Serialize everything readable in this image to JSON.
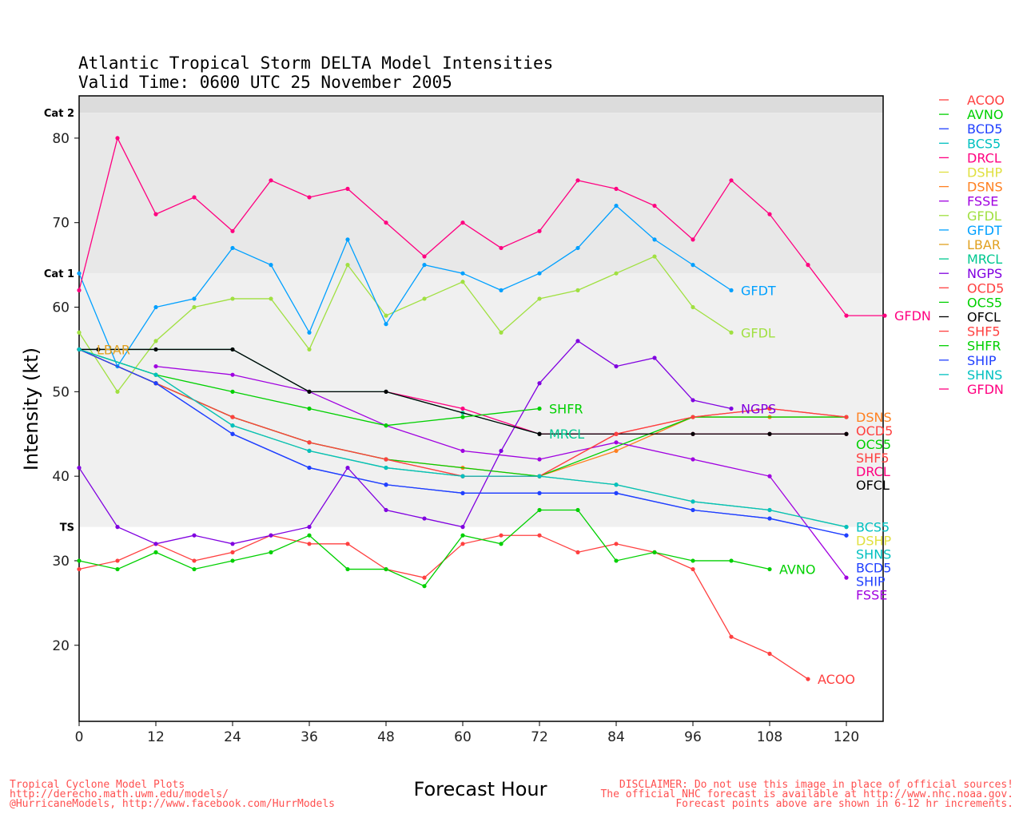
{
  "chart_data": {
    "type": "line",
    "title": "Atlantic Tropical Storm DELTA Model Intensities",
    "subtitle": "Valid Time: 0600 UTC 25 November 2005",
    "xlabel": "Forecast Hour",
    "ylabel": "Intensity (kt)",
    "xlim": [
      0,
      125.75
    ],
    "ylim": [
      11,
      85
    ],
    "xticks": [
      0,
      12,
      24,
      36,
      48,
      60,
      72,
      84,
      96,
      108,
      120
    ],
    "yticks": [
      20,
      30,
      40,
      50,
      60,
      70,
      80
    ],
    "bands": [
      {
        "label": "Cat 2",
        "from": 83,
        "to": 85,
        "color": "#dcdcdc"
      },
      {
        "label": "Cat 1",
        "from": 64,
        "to": 83,
        "color": "#e8e8e8"
      },
      {
        "label": "TS",
        "from": 34,
        "to": 64,
        "color": "#f0f0f0"
      }
    ],
    "legend_position": "right",
    "series": [
      {
        "name": "ACOO",
        "color": "#ff4040",
        "x": [
          0,
          6,
          12,
          18,
          24,
          30,
          36,
          42,
          48,
          54,
          60,
          66,
          72,
          78,
          84,
          90,
          96,
          102,
          108,
          114
        ],
        "y": [
          29,
          30,
          32,
          30,
          31,
          33,
          32,
          32,
          29,
          28,
          32,
          33,
          33,
          31,
          32,
          31,
          29,
          21,
          19,
          16
        ]
      },
      {
        "name": "AVNO",
        "color": "#00d000",
        "x": [
          0,
          6,
          12,
          18,
          24,
          30,
          36,
          42,
          48,
          54,
          60,
          66,
          72,
          78,
          84,
          90,
          96,
          102,
          108
        ],
        "y": [
          30,
          29,
          31,
          29,
          30,
          31,
          33,
          29,
          29,
          27,
          33,
          32,
          36,
          36,
          30,
          31,
          30,
          30,
          29
        ]
      },
      {
        "name": "BCD5",
        "color": "#2040ff",
        "x": [
          0,
          12,
          24,
          36,
          48,
          60,
          72,
          84,
          96,
          108,
          120
        ],
        "y": [
          55,
          51,
          45,
          41,
          39,
          38,
          38,
          38,
          36,
          35,
          33
        ]
      },
      {
        "name": "BCS5",
        "color": "#00c0c0",
        "x": [
          0,
          12,
          24,
          36,
          48,
          60,
          72,
          84,
          96,
          108,
          120
        ],
        "y": [
          55,
          52,
          46,
          43,
          41,
          40,
          40,
          39,
          37,
          36,
          34
        ]
      },
      {
        "name": "DRCL",
        "color": "#ff0080",
        "x": [
          48,
          60,
          72,
          84,
          96,
          108,
          120
        ],
        "y": [
          50,
          48,
          45,
          45,
          45,
          45,
          45
        ]
      },
      {
        "name": "DSHP",
        "color": "#e0e040",
        "x": [
          0,
          12,
          24,
          36,
          48,
          60,
          72,
          84,
          96,
          108,
          120
        ],
        "y": [
          55,
          52,
          46,
          43,
          41,
          40,
          40,
          39,
          37,
          36,
          34
        ]
      },
      {
        "name": "DSNS",
        "color": "#ff8020",
        "x": [
          0,
          12,
          24,
          36,
          48,
          60,
          72,
          84,
          96,
          108,
          120
        ],
        "y": [
          55,
          51,
          47,
          44,
          42,
          41,
          40,
          43,
          47,
          47,
          47
        ]
      },
      {
        "name": "FSSE",
        "color": "#a000e0",
        "x": [
          12,
          24,
          36,
          48,
          60,
          72,
          84,
          96,
          108,
          120
        ],
        "y": [
          53,
          52,
          50,
          46,
          43,
          42,
          44,
          42,
          40,
          28
        ]
      },
      {
        "name": "GFDL",
        "color": "#a0e040",
        "x": [
          0,
          6,
          12,
          18,
          24,
          30,
          36,
          42,
          48,
          54,
          60,
          66,
          72,
          78,
          84,
          90,
          96,
          102
        ],
        "y": [
          57,
          50,
          56,
          60,
          61,
          61,
          55,
          65,
          59,
          61,
          63,
          57,
          61,
          62,
          64,
          66,
          60,
          57
        ]
      },
      {
        "name": "GFDT",
        "color": "#00a0ff",
        "x": [
          0,
          6,
          12,
          18,
          24,
          30,
          36,
          42,
          48,
          54,
          60,
          66,
          72,
          78,
          84,
          90,
          96,
          102
        ],
        "y": [
          64,
          53,
          60,
          61,
          67,
          65,
          57,
          68,
          58,
          65,
          64,
          62,
          64,
          67,
          72,
          68,
          65,
          62
        ]
      },
      {
        "name": "LBAR",
        "color": "#e0a020",
        "x": [
          0
        ],
        "y": [
          55
        ]
      },
      {
        "name": "MRCL",
        "color": "#00c890",
        "x": [
          0,
          12,
          24,
          36,
          48,
          60,
          72
        ],
        "y": [
          55,
          55,
          55,
          50,
          50,
          47.5,
          45
        ]
      },
      {
        "name": "NGPS",
        "color": "#8000e0",
        "x": [
          0,
          6,
          12,
          18,
          24,
          30,
          36,
          42,
          48,
          54,
          60,
          66,
          72,
          78,
          84,
          90,
          96,
          102
        ],
        "y": [
          41,
          34,
          32,
          33,
          32,
          33,
          34,
          41,
          36,
          35,
          34,
          43,
          51,
          56,
          53,
          54,
          49,
          48
        ]
      },
      {
        "name": "OCD5",
        "color": "#ff4040",
        "x": [
          0,
          12,
          24,
          36,
          48,
          60,
          72,
          84,
          96,
          108,
          120
        ],
        "y": [
          55,
          51,
          47,
          44,
          42,
          40,
          40,
          45,
          47,
          48,
          47
        ]
      },
      {
        "name": "OCS5",
        "color": "#00d000",
        "x": [
          0,
          12,
          24,
          36,
          48,
          72,
          96,
          120
        ],
        "y": [
          55,
          51,
          47,
          44,
          42,
          40,
          47,
          47
        ]
      },
      {
        "name": "OFCL",
        "color": "#000000",
        "x": [
          0,
          3,
          12,
          24,
          36,
          48,
          72,
          96,
          108,
          120
        ],
        "y": [
          55,
          55,
          55,
          55,
          50,
          50,
          45,
          45,
          45,
          45
        ]
      },
      {
        "name": "SHF5",
        "color": "#ff4040",
        "x": [
          0,
          12,
          24,
          36,
          48,
          60,
          72,
          84,
          96,
          108,
          120
        ],
        "y": [
          55,
          51,
          47,
          44,
          42,
          40,
          40,
          45,
          47,
          48,
          47
        ]
      },
      {
        "name": "SHFR",
        "color": "#00d000",
        "x": [
          0,
          12,
          24,
          36,
          48,
          60,
          72
        ],
        "y": [
          55,
          52,
          50,
          48,
          46,
          47,
          48
        ]
      },
      {
        "name": "SHIP",
        "color": "#2040ff",
        "x": [
          0,
          12,
          24,
          36,
          48,
          60,
          72,
          84,
          96,
          108,
          120
        ],
        "y": [
          55,
          51,
          45,
          41,
          39,
          38,
          38,
          38,
          36,
          35,
          33
        ]
      },
      {
        "name": "SHNS",
        "color": "#00c0c0",
        "x": [
          0,
          12,
          24,
          36,
          48,
          60,
          72,
          84,
          96,
          108,
          120
        ],
        "y": [
          55,
          52,
          46,
          43,
          41,
          40,
          40,
          39,
          37,
          36,
          34
        ]
      },
      {
        "name": "GFDN",
        "color": "#ff0080",
        "x": [
          0,
          6,
          12,
          18,
          24,
          30,
          36,
          42,
          48,
          54,
          60,
          66,
          72,
          78,
          84,
          90,
          96,
          102,
          108,
          114,
          120,
          126
        ],
        "y": [
          62,
          80,
          71,
          73,
          69,
          75,
          73,
          74,
          70,
          66,
          70,
          67,
          69,
          75,
          74,
          72,
          68,
          75,
          71,
          65,
          59,
          59
        ]
      }
    ]
  },
  "footer": {
    "left": [
      "Tropical Cyclone Model Plots",
      "http://derecho.math.uwm.edu/models/",
      "@HurricaneModels, http://www.facebook.com/HurrModels"
    ],
    "right": [
      "DISCLAIMER: Do not use this image in place of official sources!",
      "The official NHC forecast is available at http://www.nhc.noaa.gov.",
      "Forecast points above are shown in 6-12 hr increments."
    ]
  }
}
